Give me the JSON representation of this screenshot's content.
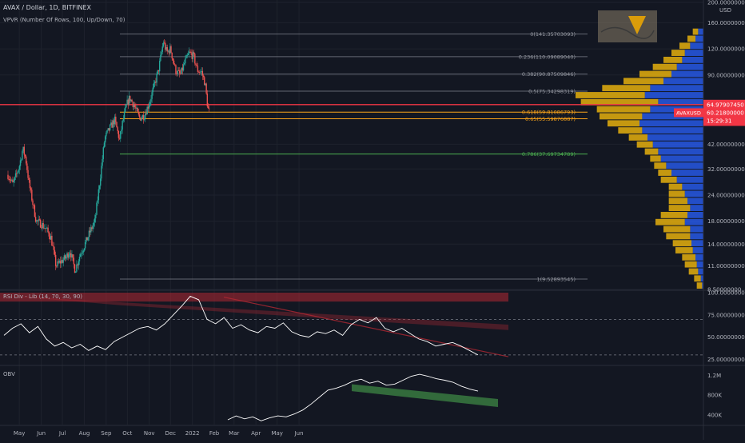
{
  "header": {
    "symbol_line": "AVAX / Dollar, 1D, BITFINEX",
    "indicator_line": "VPVR (Number Of Rows, 100, Up/Down, 70)",
    "currency": "USD"
  },
  "panes": {
    "rsi_label": "RSI Div - Lib (14, 70, 30, 90)",
    "obv_label": "OBV"
  },
  "colors": {
    "background": "#131722",
    "grid": "#1e222d",
    "bull_candle": "#26a69a",
    "bear_candle": "#ef5350",
    "price_line": "#f23645",
    "fib_orange": "#f7a21b",
    "fib_green": "#4caf50",
    "fib_gray": "#787b86",
    "vpvr_up": "#2962ff",
    "vpvr_down": "#f2b90d",
    "rsi_line": "#ffffff",
    "obv_channel": "#4caf50"
  },
  "chart_data": [
    {
      "type": "candlestick",
      "symbol": "AVAXUSD",
      "exchange": "BITFINEX",
      "interval": "1D",
      "y_scale": "log",
      "ylim": [
        8.5,
        200
      ],
      "y_ticks": [
        "200.00000000",
        "160.00000000",
        "120.00000000",
        "90.00000000",
        "64.97907450",
        "60.21800000",
        "42.00000000",
        "32.00000000",
        "24.00000000",
        "18.00000000",
        "14.00000000",
        "11.00000000",
        "8.50000000"
      ],
      "x_ticks": [
        "May",
        "Jun",
        "Jul",
        "Aug",
        "Sep",
        "Oct",
        "Nov",
        "Dec",
        "2022",
        "Feb",
        "Mar",
        "Apr",
        "May",
        "Jun"
      ],
      "close_path": [
        {
          "date": "2021-04-15",
          "close": 30
        },
        {
          "date": "2021-04-22",
          "close": 27
        },
        {
          "date": "2021-05-01",
          "close": 33
        },
        {
          "date": "2021-05-06",
          "close": 40
        },
        {
          "date": "2021-05-10",
          "close": 36
        },
        {
          "date": "2021-05-15",
          "close": 27
        },
        {
          "date": "2021-05-20",
          "close": 22
        },
        {
          "date": "2021-05-25",
          "close": 18
        },
        {
          "date": "2021-06-01",
          "close": 17.5
        },
        {
          "date": "2021-06-08",
          "close": 16.5
        },
        {
          "date": "2021-06-15",
          "close": 15
        },
        {
          "date": "2021-06-22",
          "close": 11
        },
        {
          "date": "2021-06-28",
          "close": 11.5
        },
        {
          "date": "2021-07-05",
          "close": 12
        },
        {
          "date": "2021-07-12",
          "close": 13
        },
        {
          "date": "2021-07-19",
          "close": 10.5
        },
        {
          "date": "2021-07-26",
          "close": 12.5
        },
        {
          "date": "2021-08-02",
          "close": 14
        },
        {
          "date": "2021-08-09",
          "close": 16
        },
        {
          "date": "2021-08-16",
          "close": 18
        },
        {
          "date": "2021-08-23",
          "close": 28
        },
        {
          "date": "2021-08-30",
          "close": 45
        },
        {
          "date": "2021-09-06",
          "close": 50
        },
        {
          "date": "2021-09-13",
          "close": 55
        },
        {
          "date": "2021-09-20",
          "close": 44
        },
        {
          "date": "2021-09-24",
          "close": 53
        },
        {
          "date": "2021-09-30",
          "close": 65
        },
        {
          "date": "2021-10-04",
          "close": 70
        },
        {
          "date": "2021-10-10",
          "close": 65
        },
        {
          "date": "2021-10-18",
          "close": 56
        },
        {
          "date": "2021-10-25",
          "close": 58
        },
        {
          "date": "2021-11-01",
          "close": 66
        },
        {
          "date": "2021-11-08",
          "close": 80
        },
        {
          "date": "2021-11-14",
          "close": 95
        },
        {
          "date": "2021-11-21",
          "close": 130
        },
        {
          "date": "2021-11-26",
          "close": 115
        },
        {
          "date": "2021-12-01",
          "close": 120
        },
        {
          "date": "2021-12-08",
          "close": 95
        },
        {
          "date": "2021-12-15",
          "close": 90
        },
        {
          "date": "2021-12-22",
          "close": 105
        },
        {
          "date": "2021-12-28",
          "close": 115
        },
        {
          "date": "2022-01-03",
          "close": 110
        },
        {
          "date": "2022-01-08",
          "close": 95
        },
        {
          "date": "2022-01-14",
          "close": 93
        },
        {
          "date": "2022-01-19",
          "close": 82
        },
        {
          "date": "2022-01-23",
          "close": 62
        },
        {
          "date": "2022-01-25",
          "close": 60.218
        }
      ],
      "fibonacci": [
        {
          "label": "0(141.35703093)",
          "value": 141.35703093
        },
        {
          "label": "0.236(110.09089040)",
          "value": 110.0908904
        },
        {
          "label": "0.382(90.87509846)",
          "value": 90.87509846
        },
        {
          "label": "0.5(75.34298319)",
          "value": 75.34298319
        },
        {
          "label": "0.618(59.81086793)",
          "value": 59.81086793
        },
        {
          "label": "0.65(55.59876887)",
          "value": 55.59876887
        },
        {
          "label": "0.786(37.69734789)",
          "value": 37.69734789
        },
        {
          "label": "1(9.52893545)",
          "value": 9.52893545
        }
      ],
      "horizontal_line": 64.9790745,
      "badges": [
        {
          "text": "64.97907450",
          "value": 64.9790745
        },
        {
          "text": "AVAXUSD",
          "value": 60.218
        },
        {
          "text": "60.21800000",
          "value": 60.218
        },
        {
          "text": "15:29:31",
          "value": 60.218
        }
      ],
      "volume_profile": {
        "price_range": [
          8.5,
          150
        ],
        "up_down_pairs": [
          [
            1,
            4
          ],
          [
            2,
            5
          ],
          [
            4,
            7
          ],
          [
            5,
            9
          ],
          [
            6,
            10
          ],
          [
            8,
            13
          ],
          [
            9,
            14
          ],
          [
            10,
            18
          ],
          [
            10,
            20
          ],
          [
            14,
            22
          ],
          [
            12,
            20
          ],
          [
            10,
            16
          ],
          [
            12,
            14
          ],
          [
            14,
            12
          ],
          [
            16,
            10
          ],
          [
            20,
            12
          ],
          [
            24,
            10
          ],
          [
            28,
            9
          ],
          [
            32,
            8
          ],
          [
            34,
            10
          ],
          [
            38,
            12
          ],
          [
            42,
            14
          ],
          [
            46,
            18
          ],
          [
            48,
            24
          ],
          [
            46,
            32
          ],
          [
            40,
            40
          ],
          [
            34,
            58
          ],
          [
            44,
            52
          ],
          [
            40,
            36
          ],
          [
            30,
            30
          ],
          [
            24,
            24
          ],
          [
            20,
            18
          ],
          [
            16,
            14
          ],
          [
            14,
            10
          ],
          [
            10,
            8
          ],
          [
            6,
            6
          ],
          [
            4,
            4
          ]
        ]
      }
    },
    {
      "type": "line",
      "name": "RSI Div - Lib",
      "ylim": [
        20,
        100
      ],
      "y_ticks": [
        "100.00000000",
        "75.00000000",
        "50.00000000",
        "25.00000000"
      ],
      "levels": [
        70,
        30,
        90
      ],
      "values": [
        52,
        60,
        65,
        55,
        62,
        48,
        40,
        44,
        38,
        42,
        35,
        40,
        36,
        45,
        50,
        55,
        60,
        62,
        58,
        65,
        75,
        85,
        96,
        92,
        70,
        65,
        72,
        60,
        64,
        58,
        55,
        62,
        60,
        66,
        56,
        52,
        50,
        56,
        54,
        58,
        52,
        64,
        70,
        66,
        72,
        60,
        56,
        60,
        54,
        48,
        45,
        40,
        42,
        44,
        40,
        35,
        30
      ]
    },
    {
      "type": "line",
      "name": "OBV",
      "ylim": [
        220000,
        1350000
      ],
      "y_ticks": [
        "1.2M",
        "800K",
        "400K"
      ],
      "values": [
        300000,
        380000,
        320000,
        360000,
        280000,
        340000,
        380000,
        360000,
        420000,
        500000,
        620000,
        760000,
        900000,
        940000,
        1000000,
        1080000,
        1120000,
        1040000,
        1080000,
        1000000,
        1020000,
        1100000,
        1180000,
        1220000,
        1180000,
        1130000,
        1100000,
        1060000,
        980000,
        920000,
        880000
      ]
    }
  ]
}
